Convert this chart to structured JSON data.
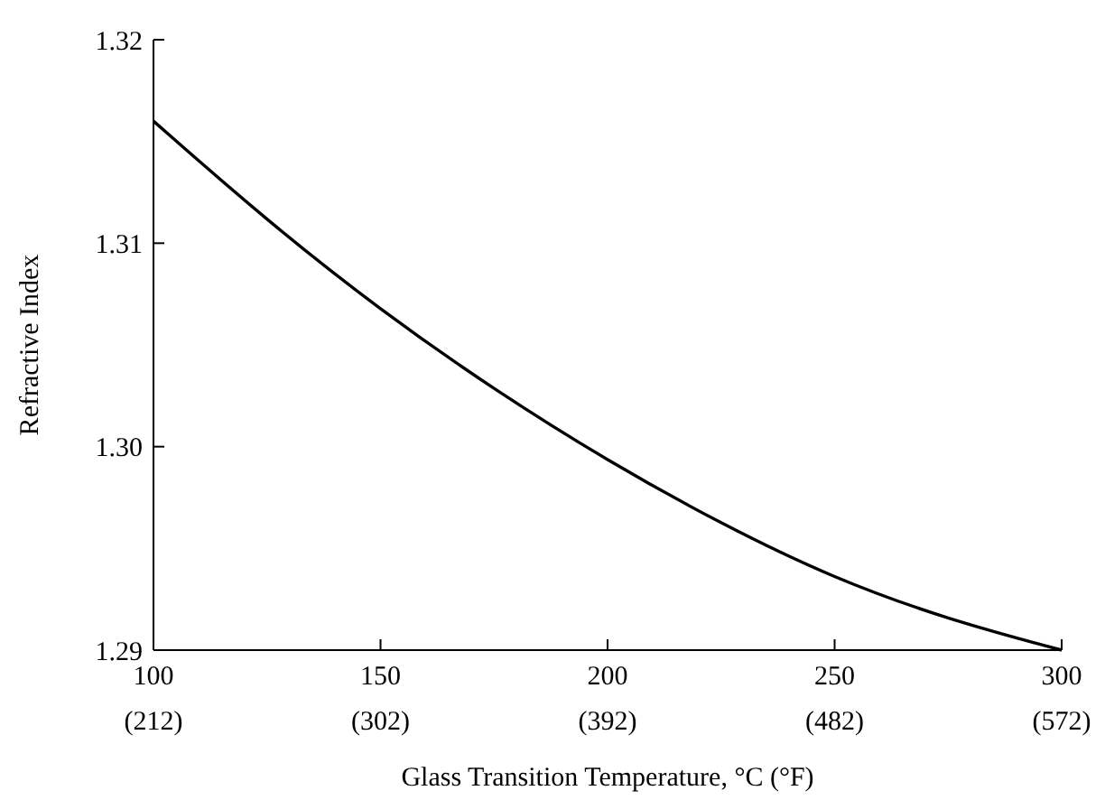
{
  "chart_data": {
    "type": "line",
    "xlabel": "Glass Transition Temperature, °C (°F)",
    "ylabel": "Refractive Index",
    "x": [
      100,
      125,
      150,
      175,
      200,
      225,
      250,
      275,
      300
    ],
    "series": [
      {
        "color": "#000000",
        "values": [
          1.316,
          1.3111,
          1.3067,
          1.3028,
          1.2993,
          1.2962,
          1.2935,
          1.2915,
          1.29
        ]
      }
    ],
    "xlim": [
      100,
      300
    ],
    "ylim": [
      1.29,
      1.32
    ],
    "xticks": [
      100,
      150,
      200,
      250,
      300
    ],
    "x2lim": [
      212,
      572
    ],
    "x2ticks": [
      {
        "value": 212,
        "label": "(212)"
      },
      {
        "value": 302,
        "label": "(302)"
      },
      {
        "value": 392,
        "label": "(392)"
      },
      {
        "value": 482,
        "label": "(482)"
      },
      {
        "value": 572,
        "label": "(572)"
      }
    ],
    "yticks": [
      {
        "value": 1.29,
        "label": "1.29"
      },
      {
        "value": 1.3,
        "label": "1.30"
      },
      {
        "value": 1.31,
        "label": "1.31"
      },
      {
        "value": 1.32,
        "label": "1.32"
      }
    ],
    "grid": false,
    "marker": "none",
    "line_style": "solid"
  }
}
